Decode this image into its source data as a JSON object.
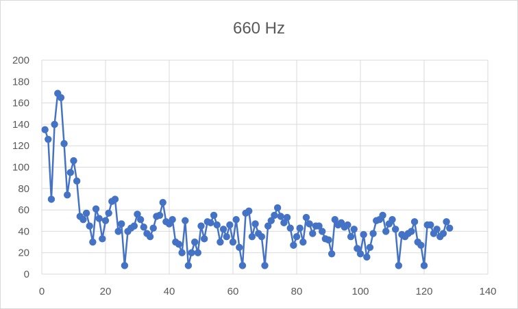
{
  "chart_data": {
    "type": "scatter",
    "title": "660 Hz",
    "xlabel": "",
    "ylabel": "",
    "xlim": [
      0,
      140
    ],
    "ylim": [
      0,
      200
    ],
    "x_ticks": [
      "0",
      "20",
      "40",
      "60",
      "80",
      "100",
      "120",
      "140"
    ],
    "y_ticks": [
      "0",
      "20",
      "40",
      "60",
      "80",
      "100",
      "120",
      "140",
      "160",
      "180",
      "200"
    ],
    "grid": "both",
    "legend": "none",
    "series_color": "#4472C4",
    "series": [
      {
        "values": [
          [
            1,
            135
          ],
          [
            2,
            126
          ],
          [
            3,
            70
          ],
          [
            4,
            140
          ],
          [
            5,
            169
          ],
          [
            6,
            165
          ],
          [
            7,
            122
          ],
          [
            8,
            74
          ],
          [
            9,
            95
          ],
          [
            10,
            106
          ],
          [
            11,
            87
          ],
          [
            12,
            54
          ],
          [
            13,
            51
          ],
          [
            14,
            57
          ],
          [
            15,
            45
          ],
          [
            16,
            30
          ],
          [
            17,
            61
          ],
          [
            18,
            52
          ],
          [
            19,
            33
          ],
          [
            20,
            50
          ],
          [
            21,
            57
          ],
          [
            22,
            68
          ],
          [
            23,
            70
          ],
          [
            24,
            40
          ],
          [
            25,
            47
          ],
          [
            26,
            8
          ],
          [
            27,
            40
          ],
          [
            28,
            43
          ],
          [
            29,
            45
          ],
          [
            30,
            56
          ],
          [
            31,
            51
          ],
          [
            32,
            44
          ],
          [
            33,
            38
          ],
          [
            34,
            35
          ],
          [
            35,
            43
          ],
          [
            36,
            54
          ],
          [
            37,
            55
          ],
          [
            38,
            67
          ],
          [
            39,
            49
          ],
          [
            40,
            47
          ],
          [
            41,
            51
          ],
          [
            42,
            30
          ],
          [
            43,
            28
          ],
          [
            44,
            20
          ],
          [
            45,
            50
          ],
          [
            46,
            8
          ],
          [
            47,
            20
          ],
          [
            48,
            30
          ],
          [
            49,
            20
          ],
          [
            50,
            45
          ],
          [
            51,
            33
          ],
          [
            52,
            49
          ],
          [
            53,
            48
          ],
          [
            54,
            55
          ],
          [
            55,
            46
          ],
          [
            56,
            30
          ],
          [
            57,
            42
          ],
          [
            58,
            35
          ],
          [
            59,
            46
          ],
          [
            60,
            30
          ],
          [
            61,
            51
          ],
          [
            62,
            25
          ],
          [
            63,
            8
          ],
          [
            64,
            57
          ],
          [
            65,
            59
          ],
          [
            66,
            35
          ],
          [
            67,
            47
          ],
          [
            68,
            38
          ],
          [
            69,
            35
          ],
          [
            70,
            8
          ],
          [
            71,
            45
          ],
          [
            72,
            50
          ],
          [
            73,
            55
          ],
          [
            74,
            62
          ],
          [
            75,
            54
          ],
          [
            76,
            48
          ],
          [
            77,
            53
          ],
          [
            78,
            43
          ],
          [
            79,
            27
          ],
          [
            80,
            35
          ],
          [
            81,
            43
          ],
          [
            82,
            30
          ],
          [
            83,
            53
          ],
          [
            84,
            47
          ],
          [
            85,
            38
          ],
          [
            86,
            45
          ],
          [
            87,
            45
          ],
          [
            88,
            40
          ],
          [
            89,
            33
          ],
          [
            90,
            32
          ],
          [
            91,
            19
          ],
          [
            92,
            51
          ],
          [
            93,
            46
          ],
          [
            94,
            48
          ],
          [
            95,
            44
          ],
          [
            96,
            46
          ],
          [
            97,
            35
          ],
          [
            98,
            42
          ],
          [
            99,
            24
          ],
          [
            100,
            19
          ],
          [
            101,
            37
          ],
          [
            102,
            16
          ],
          [
            103,
            25
          ],
          [
            104,
            38
          ],
          [
            105,
            50
          ],
          [
            106,
            51
          ],
          [
            107,
            55
          ],
          [
            108,
            40
          ],
          [
            109,
            47
          ],
          [
            110,
            51
          ],
          [
            111,
            42
          ],
          [
            112,
            8
          ],
          [
            113,
            37
          ],
          [
            114,
            35
          ],
          [
            115,
            38
          ],
          [
            116,
            40
          ],
          [
            117,
            49
          ],
          [
            118,
            30
          ],
          [
            119,
            27
          ],
          [
            120,
            8
          ],
          [
            121,
            46
          ],
          [
            122,
            46
          ],
          [
            123,
            38
          ],
          [
            124,
            42
          ],
          [
            125,
            35
          ],
          [
            126,
            38
          ],
          [
            127,
            49
          ],
          [
            128,
            43
          ]
        ]
      }
    ]
  }
}
